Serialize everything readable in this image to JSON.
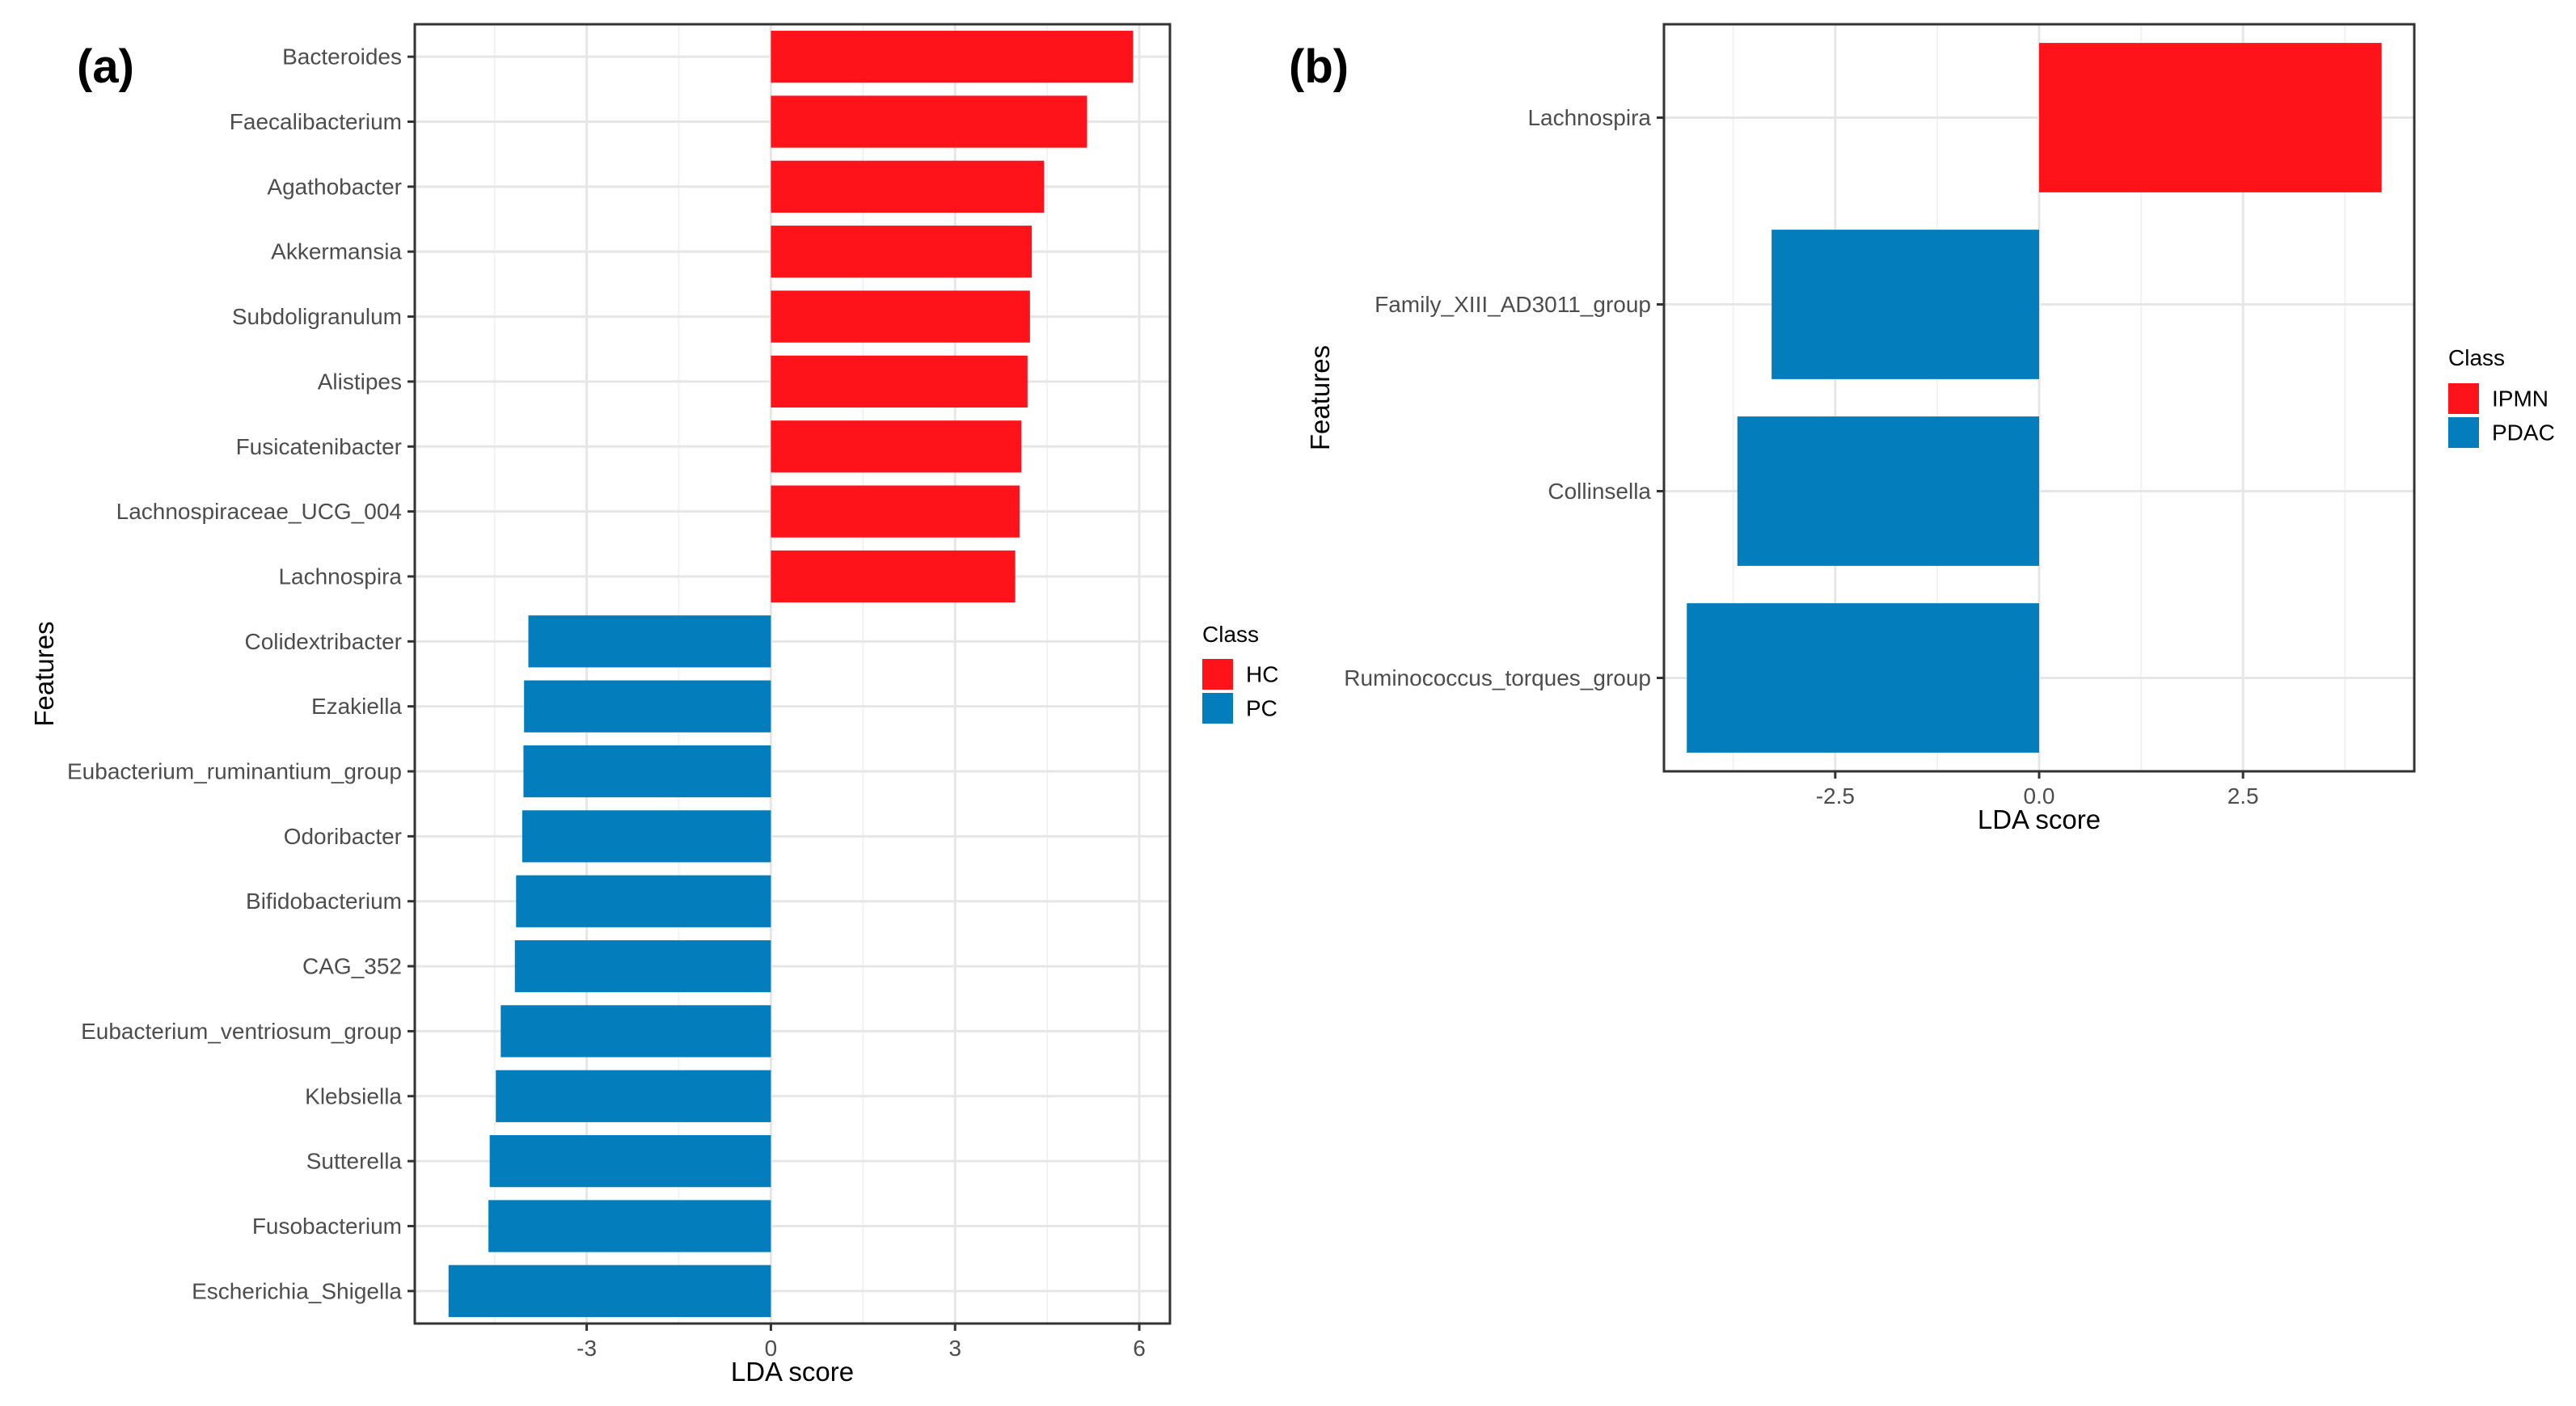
{
  "chart_data": [
    {
      "panel_label": "(a)",
      "type": "bar",
      "orientation": "horizontal",
      "xlabel": "LDA score",
      "ylabel": "Features",
      "xlim": [
        -5.8,
        6.5
      ],
      "xticks": [
        -3,
        0,
        3,
        6
      ],
      "grid": true,
      "legend": {
        "title": "Class",
        "position": "right",
        "entries": [
          "HC",
          "PC"
        ]
      },
      "colors": {
        "HC": "#ff131a",
        "PC": "#047dbd"
      },
      "categories": [
        "Bacteroides",
        "Faecalibacterium",
        "Agathobacter",
        "Akkermansia",
        "Subdoligranulum",
        "Alistipes",
        "Fusicatenibacter",
        "Lachnospiraceae_UCG_004",
        "Lachnospira",
        "Colidextribacter",
        "Ezakiella",
        "Eubacterium_ruminantium_group",
        "Odoribacter",
        "Bifidobacterium",
        "CAG_352",
        "Eubacterium_ventriosum_group",
        "Klebsiella",
        "Sutterella",
        "Fusobacterium",
        "Escherichia_Shigella"
      ],
      "values": [
        5.9,
        5.15,
        4.45,
        4.25,
        4.22,
        4.18,
        4.08,
        4.05,
        3.98,
        -3.95,
        -4.02,
        -4.03,
        -4.05,
        -4.15,
        -4.17,
        -4.4,
        -4.48,
        -4.58,
        -4.6,
        -5.25
      ],
      "class": [
        "HC",
        "HC",
        "HC",
        "HC",
        "HC",
        "HC",
        "HC",
        "HC",
        "HC",
        "PC",
        "PC",
        "PC",
        "PC",
        "PC",
        "PC",
        "PC",
        "PC",
        "PC",
        "PC",
        "PC"
      ]
    },
    {
      "panel_label": "(b)",
      "type": "bar",
      "orientation": "horizontal",
      "xlabel": "LDA score",
      "ylabel": "Features",
      "xlim": [
        -4.6,
        4.6
      ],
      "xticks": [
        -2.5,
        0,
        2.5
      ],
      "xtick_labels": [
        "-2.5",
        "0.0",
        "2.5"
      ],
      "grid": true,
      "legend": {
        "title": "Class",
        "position": "right",
        "entries": [
          "IPMN",
          "PDAC"
        ]
      },
      "colors": {
        "IPMN": "#ff131a",
        "PDAC": "#047dbd"
      },
      "categories": [
        "Lachnospira",
        "Family_XIII_AD3011_group",
        "Collinsella",
        "Ruminococcus_torques_group"
      ],
      "values": [
        4.2,
        -3.28,
        -3.7,
        -4.32
      ],
      "class": [
        "IPMN",
        "PDAC",
        "PDAC",
        "PDAC"
      ]
    }
  ]
}
